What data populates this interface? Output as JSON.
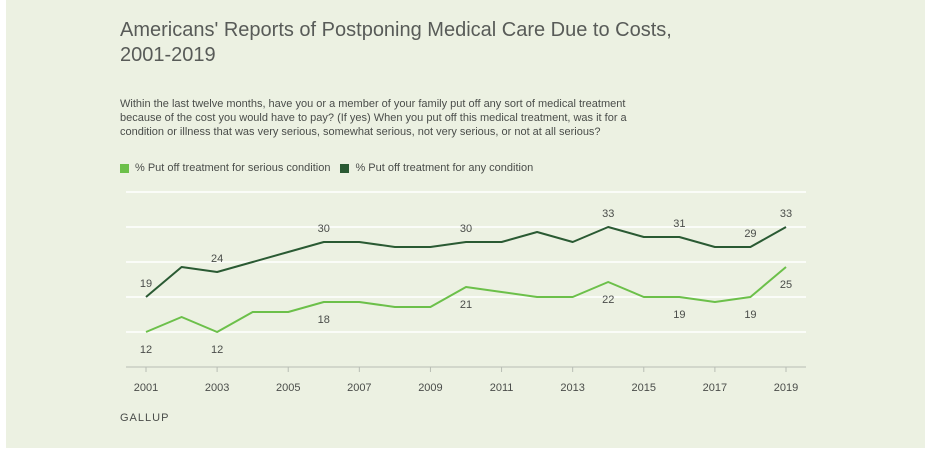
{
  "colors": {
    "background": "#ecf1e2",
    "serious": "#6cc04a",
    "any": "#2a5a33",
    "grid": "#ffffff",
    "axis": "#b8bdb4",
    "text": "#4a4d4a"
  },
  "title": "Americans' Reports of Postponing Medical Care Due to Costs, 2001-2019",
  "subtitle": "Within the last twelve months, have you or a member of your family put off any sort of medical treatment because of the cost you would have to pay? (If yes) When you put off this medical treatment, was it for a condition or illness that was very serious, somewhat serious, not very serious, or not at all serious?",
  "legend": {
    "serious_label": "% Put off treatment for serious condition",
    "any_label": "% Put off treatment for any condition"
  },
  "source": "GALLUP",
  "chart_data": {
    "type": "line",
    "x": [
      2001,
      2002,
      2003,
      2004,
      2005,
      2006,
      2007,
      2008,
      2009,
      2010,
      2011,
      2012,
      2013,
      2014,
      2015,
      2016,
      2017,
      2018,
      2019
    ],
    "x_ticks": [
      2001,
      2003,
      2005,
      2007,
      2009,
      2011,
      2013,
      2015,
      2017,
      2019
    ],
    "ylim": [
      5,
      40
    ],
    "grid": true,
    "legend_position": "top-left",
    "series": [
      {
        "name": "% Put off treatment for serious condition",
        "values": [
          12,
          15,
          12,
          16,
          16,
          18,
          18,
          17,
          17,
          21,
          20,
          19,
          19,
          22,
          19,
          19,
          18,
          19,
          25
        ],
        "labels": [
          {
            "x": 2001,
            "text": "12",
            "pos": "below"
          },
          {
            "x": 2003,
            "text": "12",
            "pos": "below"
          },
          {
            "x": 2006,
            "text": "18",
            "pos": "below"
          },
          {
            "x": 2010,
            "text": "21",
            "pos": "below"
          },
          {
            "x": 2014,
            "text": "22",
            "pos": "below"
          },
          {
            "x": 2016,
            "text": "19",
            "pos": "below"
          },
          {
            "x": 2018,
            "text": "19",
            "pos": "below"
          },
          {
            "x": 2019,
            "text": "25",
            "pos": "below"
          }
        ]
      },
      {
        "name": "% Put off treatment for any condition",
        "values": [
          19,
          25,
          24,
          26,
          28,
          30,
          30,
          29,
          29,
          30,
          30,
          32,
          30,
          33,
          31,
          31,
          29,
          29,
          33
        ],
        "labels": [
          {
            "x": 2001,
            "text": "19",
            "pos": "above"
          },
          {
            "x": 2003,
            "text": "24",
            "pos": "above"
          },
          {
            "x": 2006,
            "text": "30",
            "pos": "above"
          },
          {
            "x": 2010,
            "text": "30",
            "pos": "above"
          },
          {
            "x": 2014,
            "text": "33",
            "pos": "above"
          },
          {
            "x": 2016,
            "text": "31",
            "pos": "above"
          },
          {
            "x": 2018,
            "text": "29",
            "pos": "above"
          },
          {
            "x": 2019,
            "text": "33",
            "pos": "above"
          }
        ]
      }
    ]
  }
}
